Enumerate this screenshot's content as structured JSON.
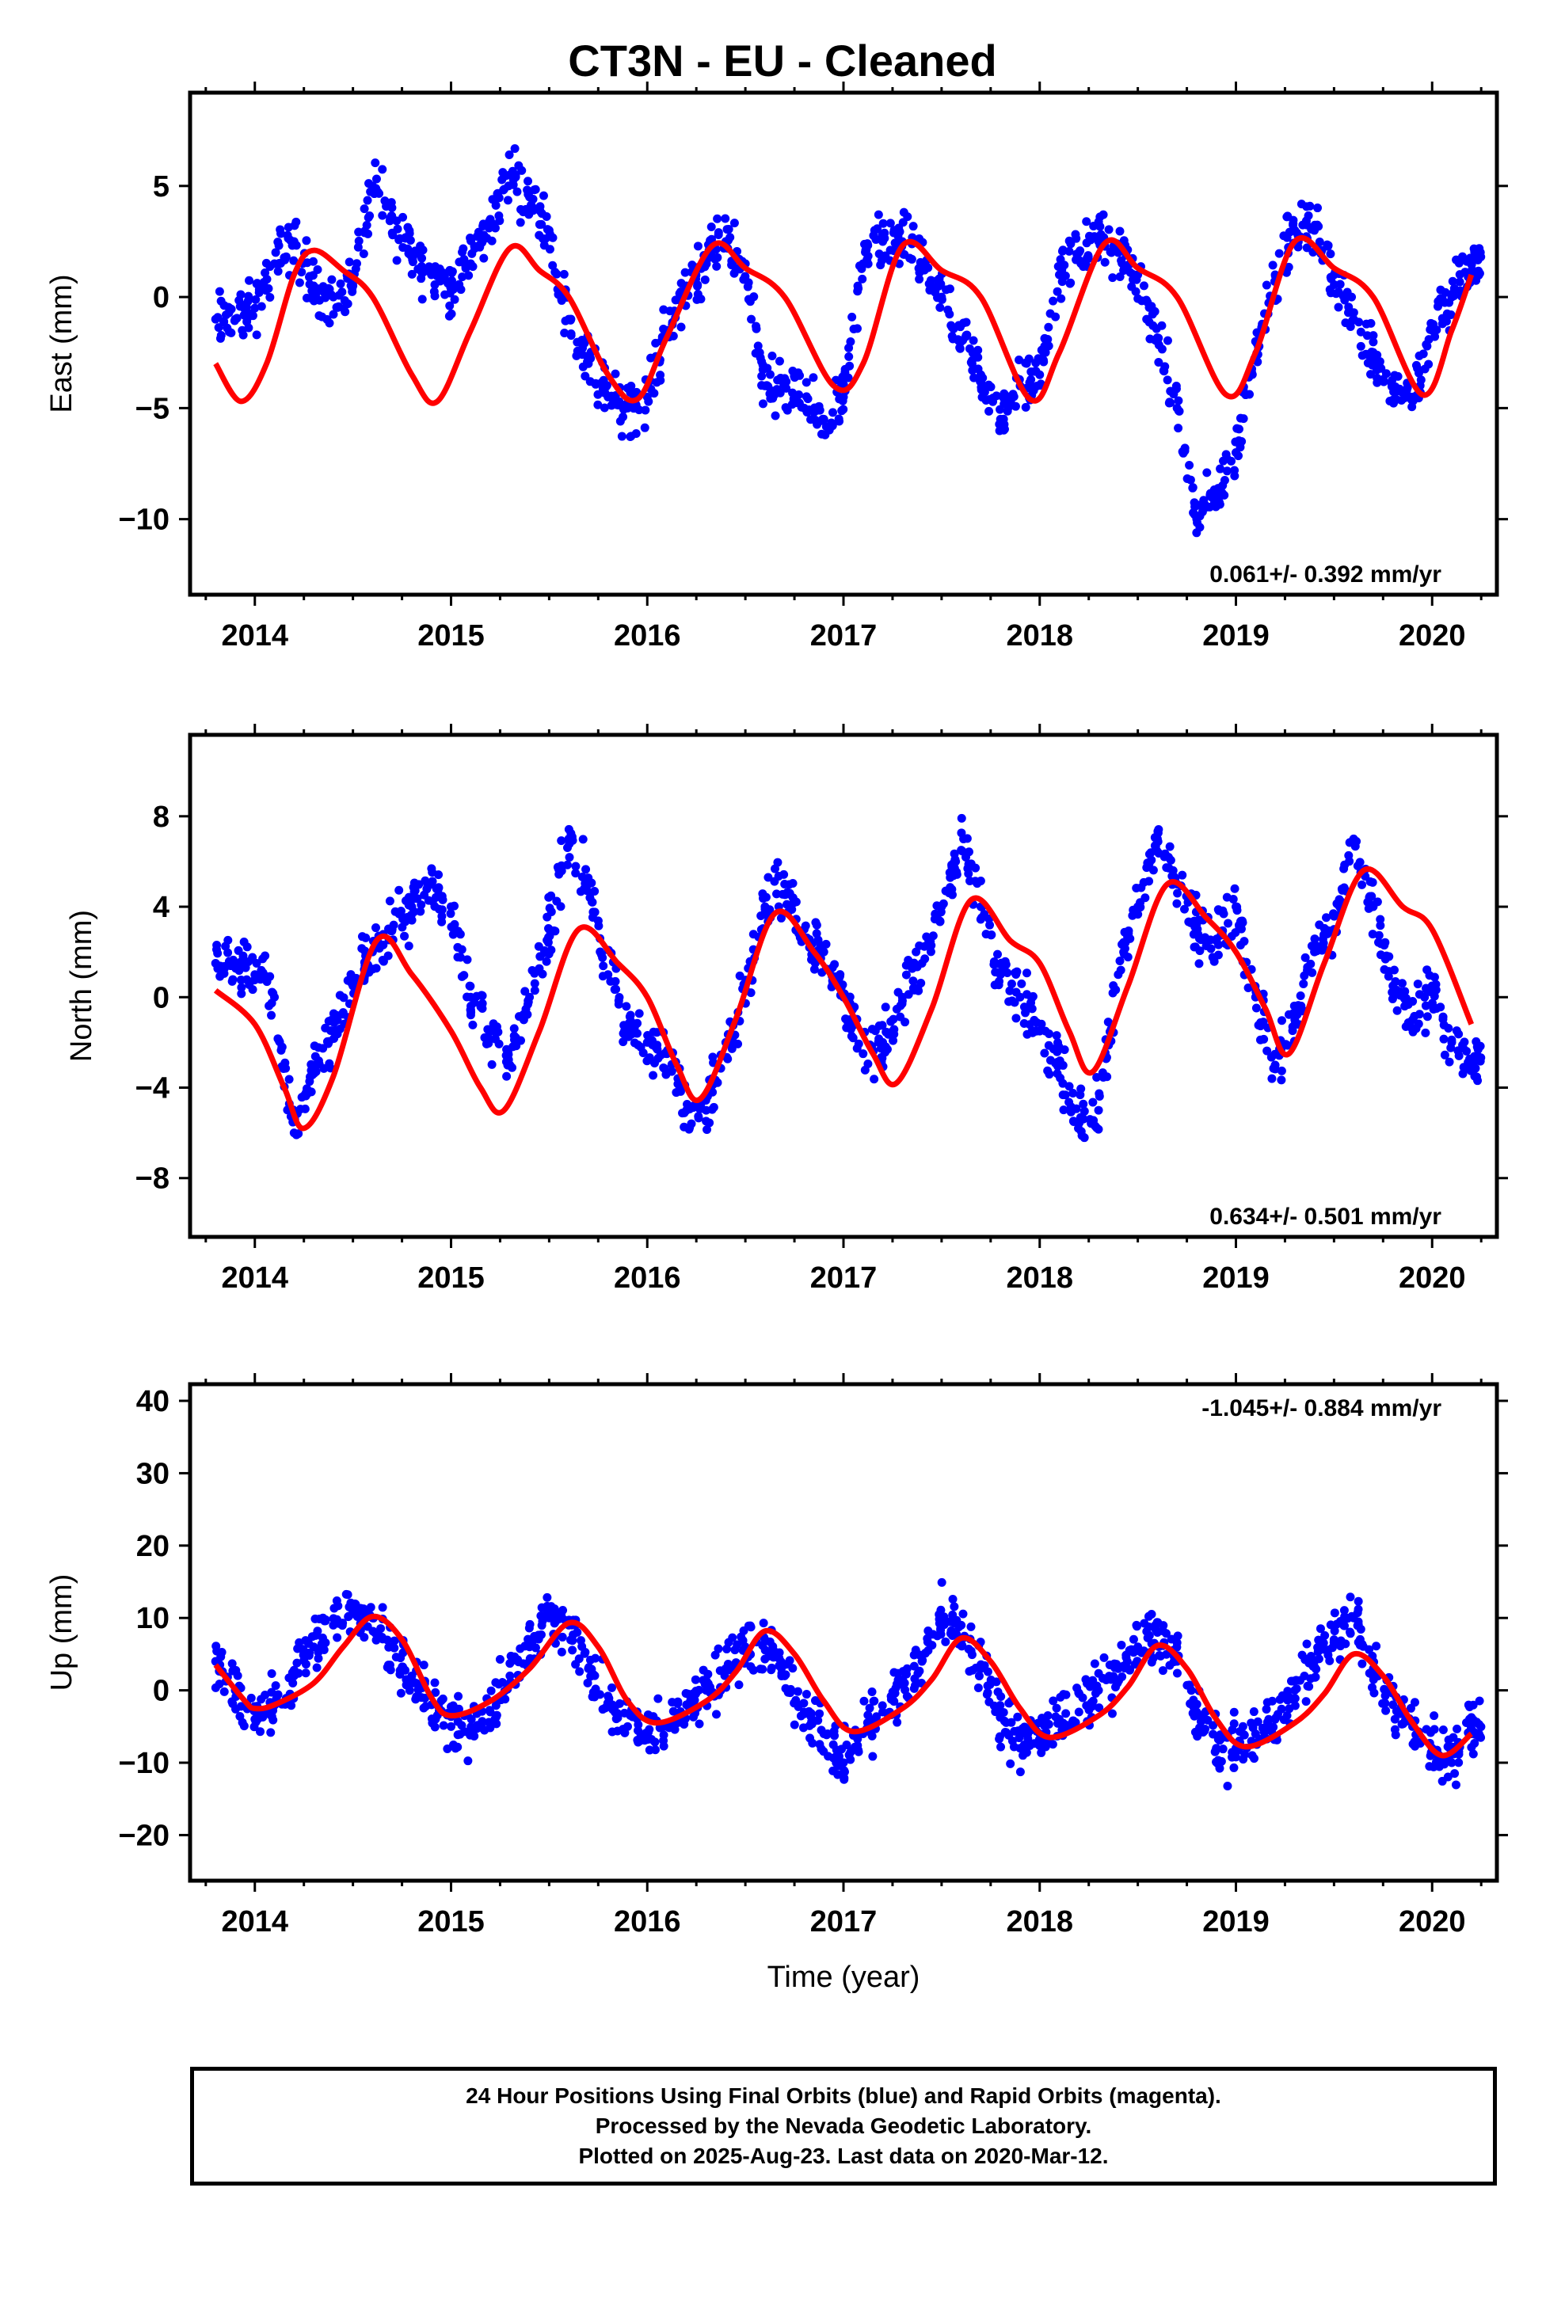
{
  "title": "CT3N  - EU - Cleaned",
  "chart_data": [
    {
      "type": "scatter",
      "ylabel": "East (mm)",
      "xlabel": "",
      "xlim": [
        2013.67,
        2020.33
      ],
      "ylim": [
        -13.4,
        9.2
      ],
      "x_ticks": [
        2014,
        2015,
        2016,
        2017,
        2018,
        2019,
        2020
      ],
      "x_tick_labels": [
        "2014",
        "2015",
        "2016",
        "2017",
        "2018",
        "2019",
        "2020"
      ],
      "y_ticks": [
        5,
        0,
        -5,
        -10
      ],
      "y_tick_labels": [
        "5",
        "0",
        "−5",
        "−10"
      ],
      "rate_label": "0.061+/- 0.392 mm/yr",
      "rate_position": "bottom-right",
      "observations_x": [
        2013.8,
        2013.9,
        2014.0,
        2014.1,
        2014.2,
        2014.3,
        2014.4,
        2014.5,
        2014.6,
        2014.7,
        2014.8,
        2014.9,
        2015.0,
        2015.1,
        2015.2,
        2015.3,
        2015.4,
        2015.5,
        2015.6,
        2015.7,
        2015.8,
        2015.9,
        2016.0,
        2016.1,
        2016.2,
        2016.3,
        2016.4,
        2016.5,
        2016.6,
        2016.7,
        2016.8,
        2016.9,
        2017.0,
        2017.1,
        2017.2,
        2017.3,
        2017.4,
        2017.5,
        2017.6,
        2017.7,
        2017.8,
        2017.9,
        2018.0,
        2018.1,
        2018.2,
        2018.3,
        2018.4,
        2018.5,
        2018.6,
        2018.7,
        2018.8,
        2018.9,
        2019.0,
        2019.1,
        2019.2,
        2019.3,
        2019.4,
        2019.5,
        2019.6,
        2019.7,
        2019.8,
        2019.9,
        2020.0,
        2020.1,
        2020.2
      ],
      "observations_y": [
        -1.0,
        -1.0,
        -0.5,
        1.5,
        2.5,
        0.5,
        0.0,
        0.5,
        5.0,
        3.5,
        2.0,
        1.0,
        0.5,
        1.5,
        3.5,
        5.5,
        4.5,
        3.0,
        -1.0,
        -3.0,
        -4.5,
        -5.0,
        -4.5,
        -1.5,
        0.5,
        1.5,
        2.5,
        1.5,
        -4.0,
        -4.0,
        -5.0,
        -5.5,
        -4.5,
        1.5,
        2.5,
        2.5,
        1.5,
        0.0,
        -2.0,
        -3.5,
        -5.5,
        -4.0,
        -3.5,
        1.0,
        2.0,
        2.5,
        2.0,
        1.0,
        -2.0,
        -5.0,
        -10.0,
        -9.0,
        -7.0,
        -2.0,
        1.0,
        3.0,
        3.0,
        1.0,
        -1.0,
        -2.5,
        -4.0,
        -4.5,
        -1.5,
        0.0,
        1.5
      ],
      "model_x": [
        2013.8,
        2013.93,
        2014.06,
        2014.2,
        2014.3,
        2014.45,
        2014.6,
        2014.8,
        2014.93,
        2015.1,
        2015.3,
        2015.45,
        2015.6,
        2015.8,
        2015.95,
        2016.1,
        2016.33,
        2016.5,
        2016.7,
        2016.95,
        2017.1,
        2017.3,
        2017.5,
        2017.7,
        2017.95,
        2018.1,
        2018.33,
        2018.5,
        2018.7,
        2018.95,
        2019.1,
        2019.3,
        2019.5,
        2019.7,
        2019.95,
        2020.1,
        2020.2
      ],
      "model_y": [
        -3.0,
        -4.7,
        -3.0,
        1.0,
        2.1,
        1.2,
        0.0,
        -3.5,
        -4.7,
        -1.5,
        2.2,
        1.2,
        0.0,
        -3.5,
        -4.6,
        -1.8,
        2.3,
        1.3,
        0.0,
        -4.0,
        -3.0,
        2.3,
        1.2,
        0.0,
        -4.6,
        -2.5,
        2.4,
        1.3,
        0.0,
        -4.4,
        -2.5,
        2.5,
        1.3,
        0.0,
        -4.4,
        -1.5,
        1.0
      ]
    },
    {
      "type": "scatter",
      "ylabel": "North (mm)",
      "xlabel": "",
      "xlim": [
        2013.67,
        2020.33
      ],
      "ylim": [
        -10.6,
        11.6
      ],
      "x_ticks": [
        2014,
        2015,
        2016,
        2017,
        2018,
        2019,
        2020
      ],
      "x_tick_labels": [
        "2014",
        "2015",
        "2016",
        "2017",
        "2018",
        "2019",
        "2020"
      ],
      "y_ticks": [
        8,
        4,
        0,
        -4,
        -8
      ],
      "y_tick_labels": [
        "8",
        "4",
        "0",
        "−4",
        "−8"
      ],
      "rate_label": "0.634+/- 0.501 mm/yr",
      "rate_position": "bottom-right",
      "observations_x": [
        2013.8,
        2013.9,
        2014.0,
        2014.1,
        2014.2,
        2014.3,
        2014.4,
        2014.5,
        2014.6,
        2014.7,
        2014.8,
        2014.9,
        2015.0,
        2015.1,
        2015.2,
        2015.3,
        2015.4,
        2015.5,
        2015.6,
        2015.7,
        2015.8,
        2015.9,
        2016.0,
        2016.1,
        2016.2,
        2016.3,
        2016.4,
        2016.5,
        2016.6,
        2016.7,
        2016.8,
        2016.9,
        2017.0,
        2017.1,
        2017.2,
        2017.3,
        2017.4,
        2017.5,
        2017.6,
        2017.7,
        2017.8,
        2017.9,
        2018.0,
        2018.1,
        2018.2,
        2018.3,
        2018.4,
        2018.5,
        2018.6,
        2018.7,
        2018.8,
        2018.9,
        2019.0,
        2019.1,
        2019.2,
        2019.3,
        2019.4,
        2019.5,
        2019.6,
        2019.7,
        2019.8,
        2019.9,
        2020.0,
        2020.1,
        2020.2
      ],
      "observations_y": [
        1.5,
        1.5,
        1.0,
        0.0,
        -6.0,
        -3.0,
        -1.5,
        0.5,
        2.0,
        3.0,
        4.0,
        5.0,
        4.0,
        0.0,
        -1.5,
        -3.0,
        0.0,
        3.0,
        7.0,
        5.0,
        1.0,
        -1.5,
        -2.0,
        -2.5,
        -5.0,
        -5.0,
        -2.0,
        0.5,
        4.0,
        5.0,
        3.0,
        2.0,
        0.0,
        -2.5,
        -2.0,
        0.0,
        1.5,
        4.0,
        6.5,
        4.0,
        1.0,
        0.0,
        -1.5,
        -3.0,
        -5.5,
        -5.0,
        1.0,
        4.0,
        7.0,
        5.0,
        3.0,
        2.5,
        4.0,
        0.0,
        -3.0,
        -1.0,
        2.0,
        3.0,
        7.0,
        4.0,
        0.5,
        -1.0,
        0.5,
        -2.0,
        -3.0
      ],
      "model_x": [
        2013.8,
        2014.0,
        2014.15,
        2014.25,
        2014.4,
        2014.62,
        2014.8,
        2015.0,
        2015.15,
        2015.27,
        2015.45,
        2015.65,
        2015.85,
        2016.0,
        2016.15,
        2016.27,
        2016.45,
        2016.65,
        2016.85,
        2017.0,
        2017.15,
        2017.27,
        2017.45,
        2017.65,
        2017.85,
        2018.0,
        2018.15,
        2018.27,
        2018.45,
        2018.65,
        2018.85,
        2019.0,
        2019.15,
        2019.27,
        2019.45,
        2019.65,
        2019.85,
        2020.0,
        2020.2
      ],
      "model_y": [
        0.3,
        -1.2,
        -4.0,
        -5.8,
        -3.5,
        2.5,
        1.0,
        -1.5,
        -4.0,
        -5.0,
        -1.5,
        3.0,
        1.5,
        0.0,
        -3.0,
        -4.5,
        -1.0,
        3.7,
        2.0,
        0.0,
        -2.5,
        -3.8,
        -0.5,
        4.3,
        2.5,
        1.5,
        -1.5,
        -3.3,
        0.5,
        5.0,
        3.5,
        2.0,
        -0.5,
        -2.5,
        1.5,
        5.6,
        4.0,
        3.0,
        -1.2
      ]
    },
    {
      "type": "scatter",
      "ylabel": "Up (mm)",
      "xlabel": "Time (year)",
      "xlim": [
        2013.67,
        2020.33
      ],
      "ylim": [
        -26.3,
        42.3
      ],
      "x_ticks": [
        2014,
        2015,
        2016,
        2017,
        2018,
        2019,
        2020
      ],
      "x_tick_labels": [
        "2014",
        "2015",
        "2016",
        "2017",
        "2018",
        "2019",
        "2020"
      ],
      "y_ticks": [
        40,
        30,
        20,
        10,
        0,
        -10,
        -20
      ],
      "y_tick_labels": [
        "40",
        "30",
        "20",
        "10",
        "0",
        "−10",
        "−20"
      ],
      "rate_label": "-1.045+/- 0.884 mm/yr",
      "rate_position": "top-right",
      "observations_x": [
        2013.8,
        2013.9,
        2014.0,
        2014.1,
        2014.2,
        2014.3,
        2014.4,
        2014.5,
        2014.6,
        2014.7,
        2014.8,
        2014.9,
        2015.0,
        2015.1,
        2015.2,
        2015.3,
        2015.4,
        2015.5,
        2015.6,
        2015.7,
        2015.8,
        2015.9,
        2016.0,
        2016.1,
        2016.2,
        2016.3,
        2016.4,
        2016.5,
        2016.6,
        2016.7,
        2016.8,
        2016.9,
        2017.0,
        2017.1,
        2017.2,
        2017.3,
        2017.4,
        2017.5,
        2017.6,
        2017.7,
        2017.8,
        2017.9,
        2018.0,
        2018.1,
        2018.2,
        2018.3,
        2018.4,
        2018.5,
        2018.6,
        2018.7,
        2018.8,
        2018.9,
        2019.0,
        2019.1,
        2019.2,
        2019.3,
        2019.4,
        2019.5,
        2019.6,
        2019.7,
        2019.8,
        2019.9,
        2020.0,
        2020.1,
        2020.2
      ],
      "observations_y": [
        4.0,
        0.0,
        -4.0,
        -2.0,
        2.0,
        6.0,
        9.0,
        11.0,
        10.0,
        6.0,
        2.0,
        -2.0,
        -5.0,
        -6.0,
        -3.0,
        2.0,
        6.0,
        10.0,
        9.0,
        3.0,
        -2.0,
        -5.0,
        -6.0,
        -5.0,
        -2.0,
        0.0,
        3.0,
        6.0,
        7.0,
        2.0,
        -3.0,
        -6.0,
        -10.0,
        -6.0,
        -3.0,
        1.0,
        4.0,
        10.0,
        9.0,
        3.0,
        -3.0,
        -8.0,
        -6.0,
        -4.0,
        -3.0,
        0.0,
        3.0,
        6.0,
        8.0,
        4.0,
        -3.0,
        -8.0,
        -8.0,
        -6.0,
        -4.0,
        0.0,
        4.0,
        7.0,
        10.0,
        3.0,
        -2.0,
        -5.0,
        -8.0,
        -10.0,
        -6.0
      ],
      "model_x": [
        2013.8,
        2013.95,
        2014.0,
        2014.1,
        2014.3,
        2014.45,
        2014.6,
        2014.75,
        2014.9,
        2015.0,
        2015.2,
        2015.4,
        2015.6,
        2015.75,
        2015.9,
        2016.05,
        2016.3,
        2016.45,
        2016.6,
        2016.75,
        2016.9,
        2017.05,
        2017.3,
        2017.45,
        2017.6,
        2017.75,
        2017.9,
        2018.05,
        2018.3,
        2018.45,
        2018.6,
        2018.75,
        2018.9,
        2019.05,
        2019.3,
        2019.45,
        2019.6,
        2019.75,
        2019.9,
        2020.05,
        2020.2
      ],
      "model_y": [
        3.5,
        -1.5,
        -2.5,
        -2.0,
        1.0,
        6.0,
        10.2,
        7.0,
        -1.0,
        -3.5,
        -1.5,
        3.0,
        9.3,
        6.0,
        -1.5,
        -4.5,
        -1.5,
        2.5,
        8.2,
        5.0,
        -1.5,
        -5.7,
        -2.5,
        1.5,
        7.2,
        4.0,
        -2.5,
        -6.5,
        -3.5,
        0.5,
        6.2,
        3.0,
        -4.0,
        -7.8,
        -4.5,
        -0.5,
        5.0,
        2.0,
        -4.5,
        -9.0,
        -6.0
      ]
    }
  ],
  "footer": {
    "line1": "24 Hour Positions Using Final Orbits (blue) and Rapid Orbits (magenta).",
    "line2": "Processed by the Nevada Geodetic Laboratory.",
    "line3": "Plotted on 2025-Aug-23. Last data on 2020-Mar-12."
  },
  "colors": {
    "observations": "#0000ff",
    "model": "#ff0000",
    "frame": "#000000"
  }
}
